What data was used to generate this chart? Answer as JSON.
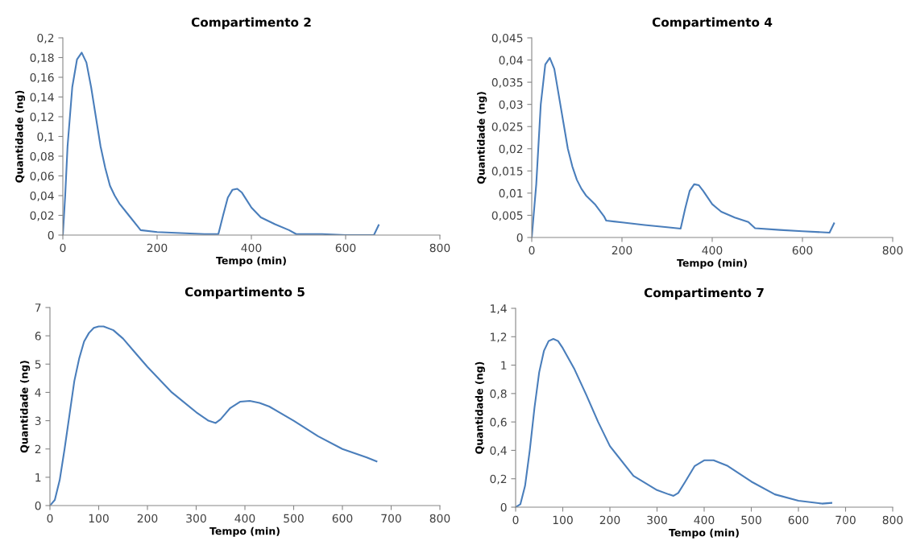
{
  "chart_data": [
    {
      "type": "line",
      "title": "Compartimento 2",
      "xlabel": "Tempo (min)",
      "ylabel": "Quantidade (ng)",
      "marker": "none",
      "line_style": "solid",
      "xlim": [
        0,
        800
      ],
      "xticks": [
        0,
        200,
        400,
        600,
        800
      ],
      "ylim": [
        0,
        0.2
      ],
      "yticks": [
        0,
        {
          "value": 0.02,
          "label": "0,02"
        },
        {
          "value": 0.04,
          "label": "0,04"
        },
        {
          "value": 0.06,
          "label": "0,06"
        },
        {
          "value": 0.08,
          "label": "0,08"
        },
        {
          "value": 0.1,
          "label": "0,1"
        },
        {
          "value": 0.12,
          "label": "0,12"
        },
        {
          "value": 0.14,
          "label": "0,14"
        },
        {
          "value": 0.16,
          "label": "0,16"
        },
        {
          "value": 0.18,
          "label": "0,18"
        },
        {
          "value": 0.2,
          "label": "0,2"
        }
      ],
      "x": [
        0,
        5,
        10,
        20,
        30,
        40,
        50,
        60,
        70,
        80,
        90,
        100,
        110,
        120,
        140,
        160,
        165,
        200,
        250,
        300,
        330,
        340,
        350,
        360,
        370,
        380,
        400,
        420,
        450,
        480,
        495,
        550,
        600,
        660,
        670
      ],
      "series": [
        {
          "color": "#4a7ebb",
          "values": [
            0,
            0.04,
            0.09,
            0.15,
            0.178,
            0.185,
            0.175,
            0.15,
            0.12,
            0.09,
            0.068,
            0.05,
            0.04,
            0.032,
            0.02,
            0.008,
            0.005,
            0.003,
            0.002,
            0.001,
            0.001,
            0.02,
            0.038,
            0.046,
            0.047,
            0.043,
            0.028,
            0.018,
            0.011,
            0.005,
            0.001,
            0.001,
            0,
            0,
            0.01
          ]
        }
      ]
    },
    {
      "type": "line",
      "title": "Compartimento 4",
      "xlabel": "Tempo (min)",
      "ylabel": "Quantidade (ng)",
      "marker": "none",
      "line_style": "solid",
      "xlim": [
        0,
        800
      ],
      "xticks": [
        0,
        200,
        400,
        600,
        800
      ],
      "ylim": [
        0,
        0.045
      ],
      "yticks": [
        0,
        {
          "value": 0.005,
          "label": "0,005"
        },
        {
          "value": 0.01,
          "label": "0,01"
        },
        {
          "value": 0.015,
          "label": "0,015"
        },
        {
          "value": 0.02,
          "label": "0,02"
        },
        {
          "value": 0.025,
          "label": "0,025"
        },
        {
          "value": 0.03,
          "label": "0,03"
        },
        {
          "value": 0.035,
          "label": "0,035"
        },
        {
          "value": 0.04,
          "label": "0,04"
        },
        {
          "value": 0.045,
          "label": "0,045"
        }
      ],
      "x": [
        0,
        10,
        20,
        30,
        40,
        50,
        60,
        70,
        80,
        90,
        100,
        110,
        120,
        140,
        160,
        165,
        200,
        250,
        300,
        330,
        340,
        350,
        360,
        370,
        380,
        400,
        420,
        450,
        480,
        495,
        550,
        600,
        660,
        670
      ],
      "series": [
        {
          "color": "#4a7ebb",
          "values": [
            0,
            0.012,
            0.03,
            0.039,
            0.0405,
            0.038,
            0.032,
            0.026,
            0.02,
            0.016,
            0.013,
            0.011,
            0.0095,
            0.0075,
            0.0048,
            0.0038,
            0.0034,
            0.0028,
            0.0023,
            0.002,
            0.0065,
            0.0105,
            0.012,
            0.0118,
            0.0105,
            0.0075,
            0.0058,
            0.0045,
            0.0035,
            0.0021,
            0.0017,
            0.0014,
            0.0011,
            0.0032
          ]
        }
      ]
    },
    {
      "type": "line",
      "title": "Compartimento 5",
      "xlabel": "Tempo (min)",
      "ylabel": "Quantidade (ng)",
      "marker": "none",
      "line_style": "solid",
      "xlim": [
        0,
        800
      ],
      "xticks": [
        0,
        100,
        200,
        300,
        400,
        500,
        600,
        700,
        800
      ],
      "ylim": [
        0,
        7
      ],
      "yticks": [
        0,
        1,
        2,
        3,
        4,
        5,
        6,
        7
      ],
      "x": [
        0,
        10,
        20,
        30,
        40,
        50,
        60,
        70,
        80,
        90,
        100,
        110,
        130,
        150,
        175,
        200,
        250,
        300,
        325,
        340,
        350,
        370,
        390,
        410,
        430,
        450,
        500,
        550,
        600,
        650,
        670
      ],
      "series": [
        {
          "color": "#4a7ebb",
          "values": [
            0,
            0.2,
            0.9,
            2.0,
            3.2,
            4.4,
            5.2,
            5.8,
            6.1,
            6.28,
            6.33,
            6.33,
            6.2,
            5.9,
            5.4,
            4.9,
            4.0,
            3.3,
            3.0,
            2.92,
            3.05,
            3.45,
            3.67,
            3.7,
            3.63,
            3.5,
            3.0,
            2.45,
            2.0,
            1.7,
            1.56
          ]
        }
      ]
    },
    {
      "type": "line",
      "title": "Compartimento 7",
      "xlabel": "Tempo (min)",
      "ylabel": "Quantidade (ng)",
      "marker": "none",
      "line_style": "solid",
      "xlim": [
        0,
        800
      ],
      "xticks": [
        0,
        100,
        200,
        300,
        400,
        500,
        600,
        700,
        800
      ],
      "ylim": [
        0,
        1.4
      ],
      "yticks": [
        0,
        {
          "value": 0.2,
          "label": "0,2"
        },
        {
          "value": 0.4,
          "label": "0,4"
        },
        {
          "value": 0.6,
          "label": "0,6"
        },
        {
          "value": 0.8,
          "label": "0,8"
        },
        1,
        {
          "value": 1.2,
          "label": "1,2"
        },
        {
          "value": 1.4,
          "label": "1,4"
        }
      ],
      "x": [
        0,
        10,
        20,
        30,
        40,
        50,
        60,
        70,
        80,
        90,
        100,
        125,
        150,
        175,
        200,
        250,
        300,
        325,
        335,
        345,
        360,
        380,
        400,
        420,
        450,
        500,
        550,
        600,
        650,
        670
      ],
      "series": [
        {
          "color": "#4a7ebb",
          "values": [
            0,
            0.02,
            0.15,
            0.4,
            0.7,
            0.95,
            1.1,
            1.17,
            1.185,
            1.17,
            1.12,
            0.97,
            0.79,
            0.6,
            0.43,
            0.22,
            0.12,
            0.09,
            0.08,
            0.1,
            0.18,
            0.29,
            0.33,
            0.33,
            0.29,
            0.18,
            0.09,
            0.045,
            0.025,
            0.03
          ]
        }
      ]
    }
  ]
}
